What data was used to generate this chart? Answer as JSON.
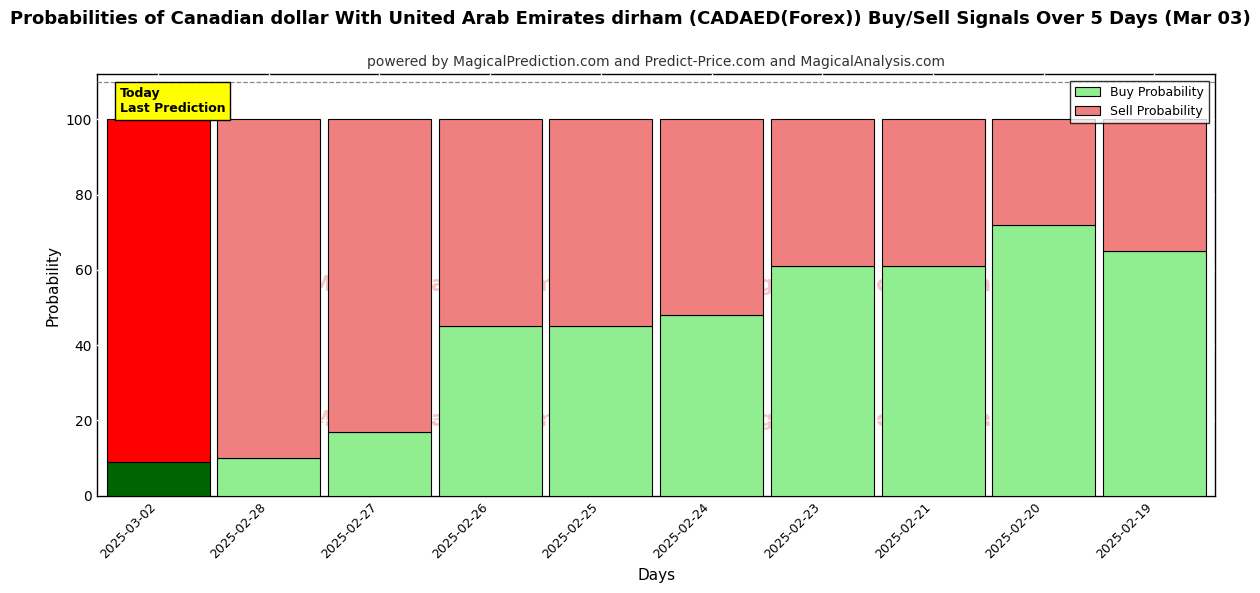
{
  "title": "Probabilities of Canadian dollar With United Arab Emirates dirham (CADAED(Forex)) Buy/Sell Signals Over 5 Days (Mar 03)",
  "subtitle": "powered by MagicalPrediction.com and Predict-Price.com and MagicalAnalysis.com",
  "xlabel": "Days",
  "ylabel": "Probability",
  "categories": [
    "2025-03-02",
    "2025-02-28",
    "2025-02-27",
    "2025-02-26",
    "2025-02-25",
    "2025-02-24",
    "2025-02-23",
    "2025-02-21",
    "2025-02-20",
    "2025-02-19"
  ],
  "buy_values": [
    9,
    10,
    17,
    45,
    45,
    48,
    61,
    61,
    72,
    65
  ],
  "sell_values": [
    91,
    90,
    83,
    55,
    55,
    52,
    39,
    39,
    28,
    35
  ],
  "today_buy_color": "#006400",
  "today_sell_color": "#ff0000",
  "buy_color": "#90EE90",
  "sell_color": "#F08080",
  "today_label": "Today\nLast Prediction",
  "today_box_color": "#ffff00",
  "legend_buy_label": "Buy Probability",
  "legend_sell_label": "Sell Probability",
  "background_color": "#ffffff",
  "plot_bg_color": "#ffffff",
  "grid_color": "#d0d0d0",
  "ylim": [
    0,
    112
  ],
  "yticks": [
    0,
    20,
    40,
    60,
    80,
    100
  ],
  "title_fontsize": 13,
  "subtitle_fontsize": 10,
  "bar_edge_color": "#000000",
  "bar_width": 0.93
}
